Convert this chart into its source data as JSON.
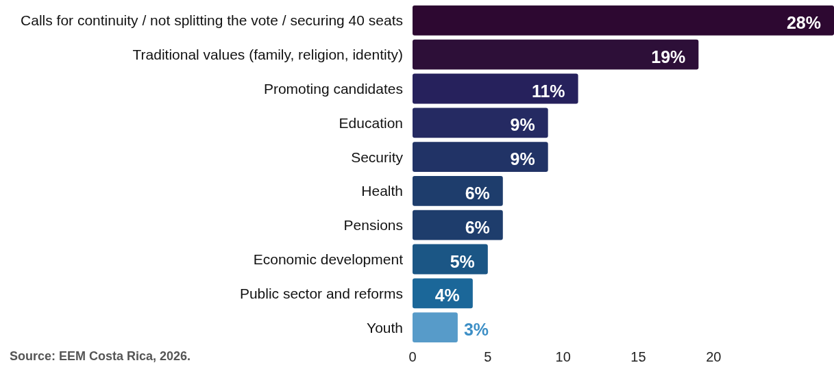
{
  "chart_data": {
    "type": "bar",
    "orientation": "horizontal",
    "categories": [
      "Calls for continuity / not splitting the vote / securing 40 seats",
      "Traditional values (family, religion, identity)",
      "Promoting candidates",
      "Education",
      "Security",
      "Health",
      "Pensions",
      "Economic development",
      "Public sector and reforms",
      "Youth"
    ],
    "values": [
      28,
      19,
      11,
      9,
      9,
      6,
      6,
      5,
      4,
      3
    ],
    "value_labels": [
      "28%",
      "19%",
      "11%",
      "9%",
      "9%",
      "6%",
      "6%",
      "5%",
      "4%",
      "3%"
    ],
    "colors": [
      "#2d0831",
      "#2d0f38",
      "#26215c",
      "#252a62",
      "#213366",
      "#1e3d6c",
      "#1e3d6c",
      "#1b5685",
      "#1b6799",
      "#579bc9"
    ],
    "xlim": [
      0,
      28
    ],
    "xticks": [
      0,
      5,
      10,
      15,
      20
    ],
    "grid": false,
    "annotations": [
      "Source: EEM Costa Rica, 2026."
    ]
  }
}
